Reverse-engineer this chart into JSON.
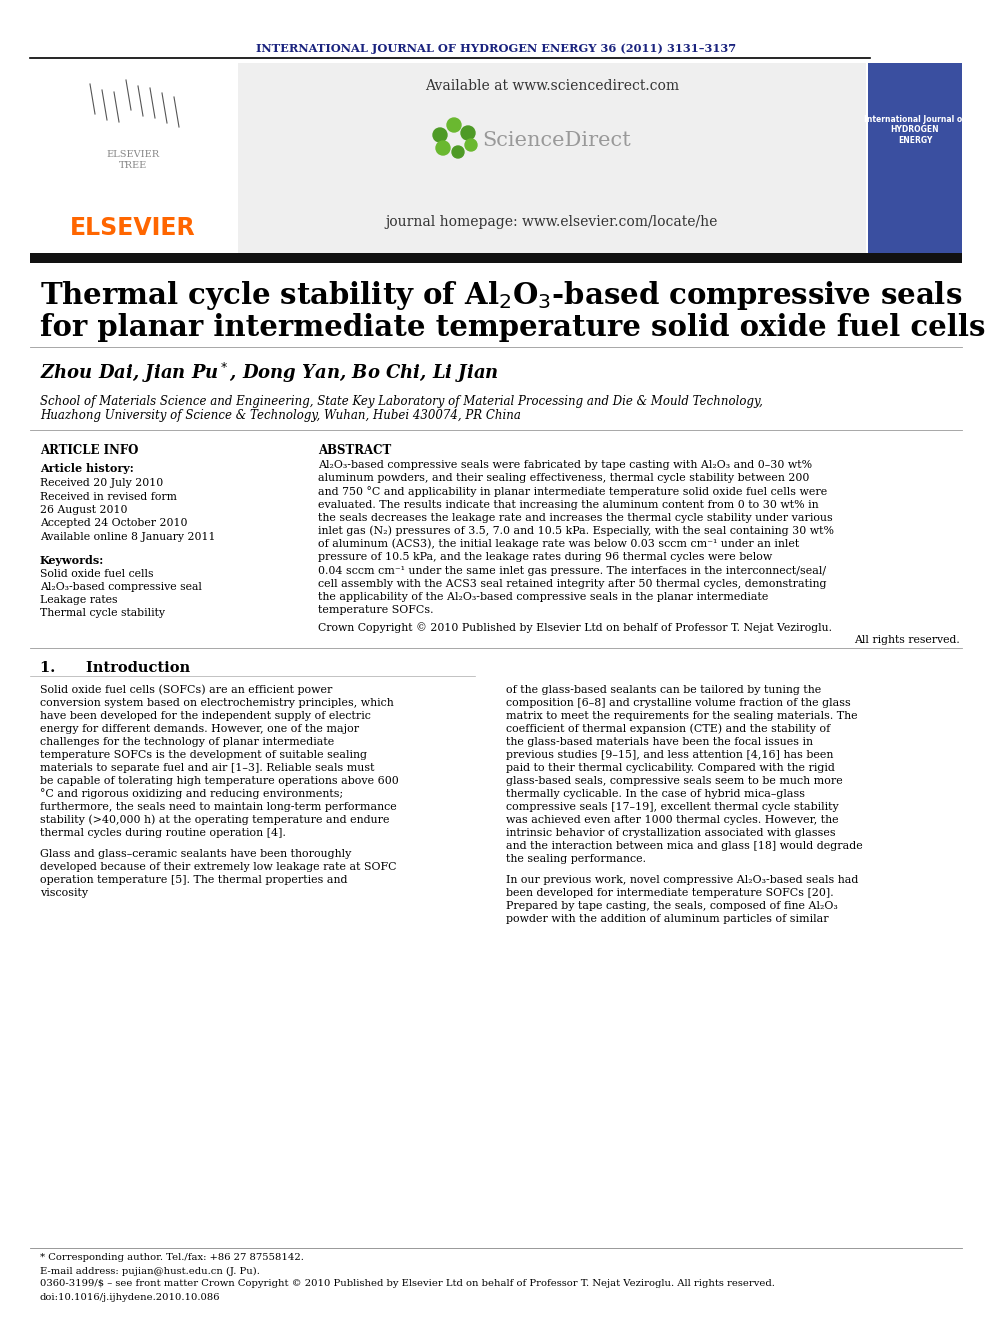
{
  "journal_header": "INTERNATIONAL JOURNAL OF HYDROGEN ENERGY 36 (2011) 3131–3137",
  "journal_header_color": "#1a237e",
  "available_text": "Available at www.sciencedirect.com",
  "homepage_text": "journal homepage: www.elsevier.com/locate/he",
  "sciencedirect_text": "ScienceDirect",
  "elsevier_text": "ELSEVIER",
  "elsevier_color": "#ff6600",
  "affiliation1": "School of Materials Science and Engineering, State Key Laboratory of Material Processing and Die & Mould Technology,",
  "affiliation2": "Huazhong University of Science & Technology, Wuhan, Hubei 430074, PR China",
  "article_info_title": "ARTICLE INFO",
  "article_history_title": "Article history:",
  "received1": "Received 20 July 2010",
  "received2": "Received in revised form",
  "received2b": "26 August 2010",
  "accepted": "Accepted 24 October 2010",
  "available_online": "Available online 8 January 2011",
  "keywords_title": "Keywords:",
  "keyword1": "Solid oxide fuel cells",
  "keyword2": "Al₂O₃-based compressive seal",
  "keyword3": "Leakage rates",
  "keyword4": "Thermal cycle stability",
  "abstract_title": "ABSTRACT",
  "abstract_text": "Al₂O₃-based compressive seals were fabricated by tape casting with Al₂O₃ and 0–30 wt%\naluminum powders, and their sealing effectiveness, thermal cycle stability between 200\nand 750 °C and applicability in planar intermediate temperature solid oxide fuel cells were\nevaluated. The results indicate that increasing the aluminum content from 0 to 30 wt% in\nthe seals decreases the leakage rate and increases the thermal cycle stability under various\ninlet gas (N₂) pressures of 3.5, 7.0 and 10.5 kPa. Especially, with the seal containing 30 wt%\nof aluminum (ACS3), the initial leakage rate was below 0.03 sccm cm⁻¹ under an inlet\npressure of 10.5 kPa, and the leakage rates during 96 thermal cycles were below\n0.04 sccm cm⁻¹ under the same inlet gas pressure. The interfaces in the interconnect/seal/\ncell assembly with the ACS3 seal retained integrity after 50 thermal cycles, demonstrating\nthe applicability of the Al₂O₃-based compressive seals in the planar intermediate\ntemperature SOFCs.",
  "copyright_text": "Crown Copyright © 2010 Published by Elsevier Ltd on behalf of Professor T. Nejat Veziroglu.",
  "rights_text": "All rights reserved.",
  "intro_title": "1.      Introduction",
  "intro_col1": "Solid oxide fuel cells (SOFCs) are an efficient power conversion system based on electrochemistry principles, which have been developed for the independent supply of electric energy for different demands. However, one of the major challenges for the technology of planar intermediate temperature SOFCs is the development of suitable sealing materials to separate fuel and air [1–3]. Reliable seals must be capable of tolerating high temperature operations above 600 °C and rigorous oxidizing and reducing environments; furthermore, the seals need to maintain long-term performance stability (>40,000 h) at the operating temperature and endure thermal cycles during routine operation [4].\n\nGlass and glass–ceramic sealants have been thoroughly developed because of their extremely low leakage rate at SOFC operation temperature [5]. The thermal properties and viscosity",
  "intro_col2": "of the glass-based sealants can be tailored by tuning the composition [6–8] and crystalline volume fraction of the glass matrix to meet the requirements for the sealing materials. The coefficient of thermal expansion (CTE) and the stability of the glass-based materials have been the focal issues in previous studies [9–15], and less attention [4,16] has been paid to their thermal cyclicability. Compared with the rigid glass-based seals, compressive seals seem to be much more thermally cyclicable. In the case of hybrid mica–glass compressive seals [17–19], excellent thermal cycle stability was achieved even after 1000 thermal cycles. However, the intrinsic behavior of crystallization associated with glasses and the interaction between mica and glass [18] would degrade the sealing performance.\n\nIn our previous work, novel compressive Al₂O₃-based seals had been developed for intermediate temperature SOFCs [20]. Prepared by tape casting, the seals, composed of fine Al₂O₃ powder with the addition of aluminum particles of similar",
  "footnote1": "* Corresponding author. Tel./fax: +86 27 87558142.",
  "footnote2": "E-mail address: pujian@hust.edu.cn (J. Pu).",
  "footnote3": "0360-3199/$ – see front matter Crown Copyright © 2010 Published by Elsevier Ltd on behalf of Professor T. Nejat Veziroglu. All rights reserved.",
  "footnote4": "doi:10.1016/j.ijhydene.2010.10.086",
  "bg_color": "#ffffff",
  "dark_bar_color": "#111111"
}
